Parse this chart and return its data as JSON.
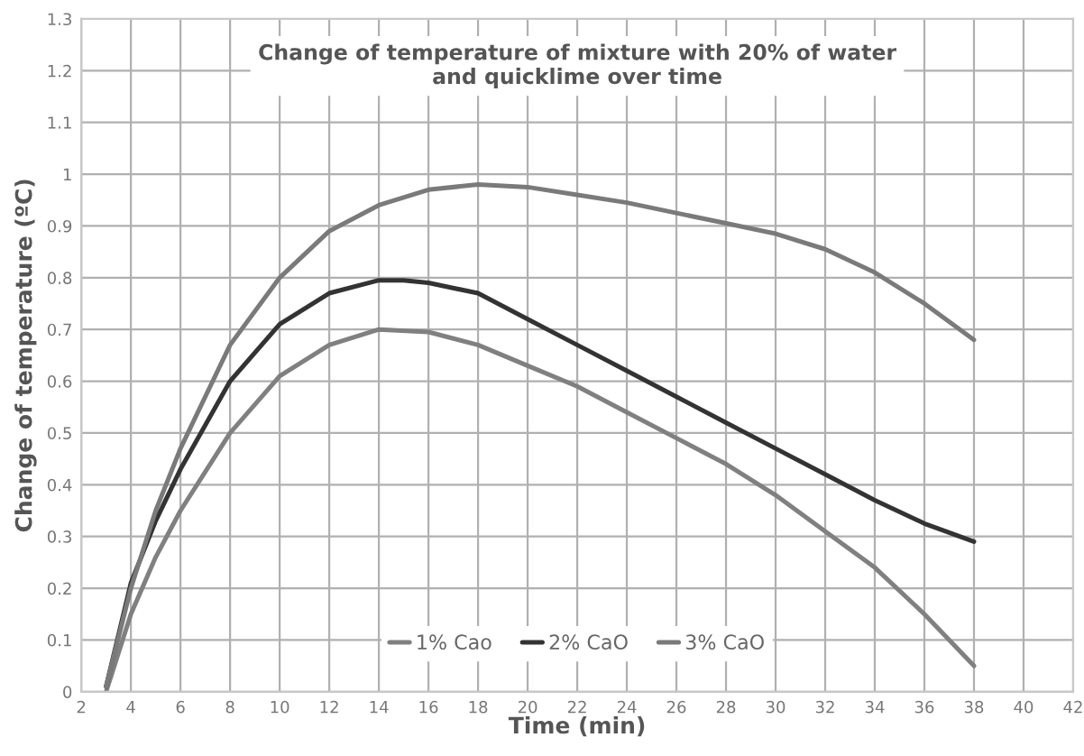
{
  "chart_data": {
    "type": "line",
    "title": "Change of temperature of mixture with 20% of water\nand quicklime over time",
    "xlabel": "Time (min)",
    "ylabel": "Change of temperature (ºC)",
    "xlim": [
      2,
      42
    ],
    "xticks": [
      2,
      4,
      6,
      8,
      10,
      12,
      14,
      16,
      18,
      20,
      22,
      24,
      26,
      28,
      30,
      32,
      34,
      36,
      38,
      40,
      42
    ],
    "ylim": [
      0,
      1.3
    ],
    "yticks": [
      0,
      0.1,
      0.2,
      0.3,
      0.4,
      0.5,
      0.6,
      0.7,
      0.8,
      0.9,
      1,
      1.1,
      1.2,
      1.3
    ],
    "grid": true,
    "legend": "bottom",
    "marker": "none",
    "line_style": "solid",
    "series": [
      {
        "name": "1% Cao",
        "color": "#808080",
        "x": [
          3,
          4,
          5,
          6,
          8,
          10,
          12,
          14,
          16,
          18,
          20,
          22,
          24,
          26,
          28,
          30,
          32,
          34,
          36,
          38
        ],
        "values": [
          0.0,
          0.15,
          0.26,
          0.35,
          0.5,
          0.61,
          0.67,
          0.7,
          0.695,
          0.67,
          0.63,
          0.59,
          0.54,
          0.49,
          0.44,
          0.38,
          0.31,
          0.24,
          0.15,
          0.05
        ]
      },
      {
        "name": "2% CaO",
        "color": "#333333",
        "x": [
          3,
          4,
          5,
          6,
          8,
          10,
          12,
          14,
          15,
          16,
          18,
          20,
          22,
          24,
          26,
          28,
          30,
          32,
          34,
          36,
          38
        ],
        "values": [
          0.01,
          0.21,
          0.33,
          0.43,
          0.6,
          0.71,
          0.77,
          0.795,
          0.795,
          0.79,
          0.77,
          0.72,
          0.67,
          0.62,
          0.57,
          0.52,
          0.47,
          0.42,
          0.37,
          0.325,
          0.29
        ]
      },
      {
        "name": "3% CaO",
        "color": "#7a7a7a",
        "x": [
          3,
          4,
          5,
          6,
          8,
          10,
          12,
          14,
          16,
          18,
          20,
          22,
          24,
          26,
          28,
          30,
          32,
          34,
          36,
          38
        ],
        "values": [
          0.01,
          0.2,
          0.35,
          0.47,
          0.67,
          0.8,
          0.89,
          0.94,
          0.97,
          0.98,
          0.975,
          0.96,
          0.945,
          0.925,
          0.905,
          0.885,
          0.855,
          0.81,
          0.75,
          0.68
        ]
      }
    ]
  }
}
